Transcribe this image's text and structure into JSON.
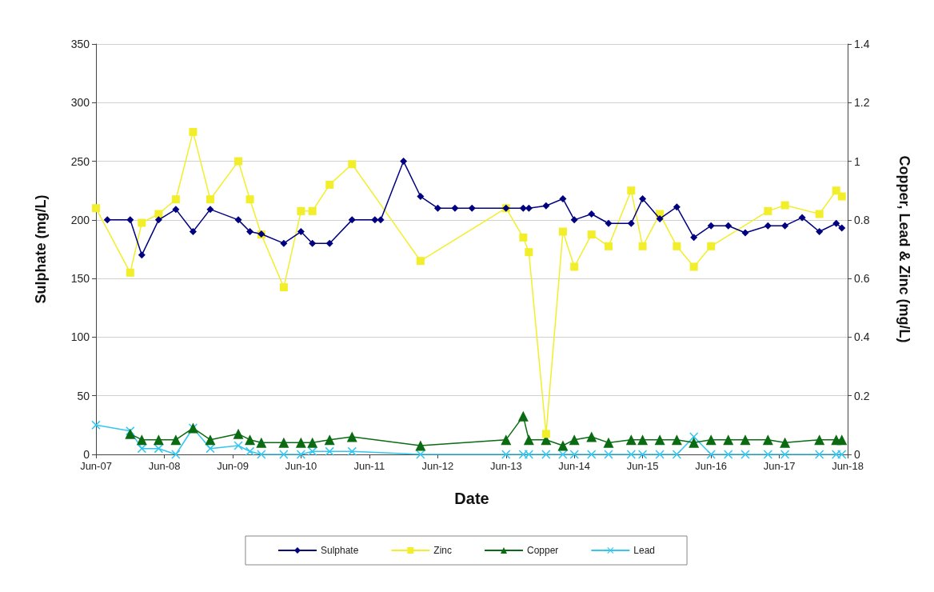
{
  "chart_data": {
    "type": "line",
    "xlabel": "Date",
    "ylabel": "Sulphate (mg/L)",
    "y2label": "Copper, Lead & Zinc (mg/L)",
    "xlim": [
      "2007-06",
      "2018-06"
    ],
    "xticks": [
      {
        "value": "2007-06",
        "label": "Jun-07"
      },
      {
        "value": "2008-06",
        "label": "Jun-08"
      },
      {
        "value": "2009-06",
        "label": "Jun-09"
      },
      {
        "value": "2010-06",
        "label": "Jun-10"
      },
      {
        "value": "2011-06",
        "label": "Jun-11"
      },
      {
        "value": "2012-06",
        "label": "Jun-12"
      },
      {
        "value": "2013-06",
        "label": "Jun-13"
      },
      {
        "value": "2014-06",
        "label": "Jun-14"
      },
      {
        "value": "2015-06",
        "label": "Jun-15"
      },
      {
        "value": "2016-06",
        "label": "Jun-16"
      },
      {
        "value": "2017-06",
        "label": "Jun-17"
      },
      {
        "value": "2018-06",
        "label": "Jun-18"
      }
    ],
    "ylim": [
      0,
      350
    ],
    "yticks": [
      0,
      50,
      100,
      150,
      200,
      250,
      300,
      350
    ],
    "y2lim": [
      0,
      1.4
    ],
    "y2ticks": [
      0,
      0.2,
      0.4,
      0.6,
      0.8,
      1,
      1.2,
      1.4
    ],
    "grid": "y",
    "legend": "bottom",
    "series": [
      {
        "name": "Sulphate",
        "color": "#000080",
        "marker": "diamond",
        "x": [
          "2007-08",
          "2007-12",
          "2008-02",
          "2008-05",
          "2008-08",
          "2008-11",
          "2009-02",
          "2009-07",
          "2009-09",
          "2009-11",
          "2010-03",
          "2010-06",
          "2010-08",
          "2010-11",
          "2011-03",
          "2011-07",
          "2011-08",
          "2011-12",
          "2012-03",
          "2012-06",
          "2012-09",
          "2012-12",
          "2013-06",
          "2013-09",
          "2013-10",
          "2014-01",
          "2014-04",
          "2014-06",
          "2014-09",
          "2014-12",
          "2015-04",
          "2015-06",
          "2015-09",
          "2015-12",
          "2016-03",
          "2016-06",
          "2016-09",
          "2016-12",
          "2017-04",
          "2017-07",
          "2017-10",
          "2018-01",
          "2018-04",
          "2018-05"
        ],
        "values": [
          200,
          200,
          170,
          200,
          209,
          190,
          209,
          200,
          190,
          188,
          180,
          190,
          180,
          180,
          200,
          200,
          200,
          250,
          220,
          210,
          210,
          210,
          210,
          210,
          210,
          212,
          218,
          200,
          205,
          197,
          197,
          218,
          201,
          211,
          185,
          195,
          195,
          189,
          195,
          195,
          202,
          190,
          197,
          193
        ]
      },
      {
        "name": "Zinc",
        "color": "#f2ef2a",
        "marker": "square",
        "axis": "y2",
        "x": [
          "2007-06",
          "2007-12",
          "2008-02",
          "2008-05",
          "2008-08",
          "2008-11",
          "2009-02",
          "2009-07",
          "2009-09",
          "2009-11",
          "2010-03",
          "2010-06",
          "2010-08",
          "2010-11",
          "2011-03",
          "2012-03",
          "2013-06",
          "2013-09",
          "2013-10",
          "2014-01",
          "2014-04",
          "2014-06",
          "2014-09",
          "2014-12",
          "2015-04",
          "2015-06",
          "2015-09",
          "2015-12",
          "2016-03",
          "2016-06",
          "2017-04",
          "2017-07",
          "2018-01",
          "2018-04",
          "2018-05"
        ],
        "values": [
          0.84,
          0.62,
          0.79,
          0.82,
          0.87,
          1.1,
          0.87,
          1.0,
          0.87,
          0.75,
          0.57,
          0.83,
          0.83,
          0.92,
          0.99,
          0.66,
          0.84,
          0.74,
          0.69,
          0.07,
          0.76,
          0.64,
          0.75,
          0.71,
          0.9,
          0.71,
          0.82,
          0.71,
          0.64,
          0.71,
          0.83,
          0.85,
          0.82,
          0.9,
          0.88
        ]
      },
      {
        "name": "Copper",
        "color": "#0a6b12",
        "marker": "triangle",
        "axis": "y2",
        "x": [
          "2007-12",
          "2008-02",
          "2008-05",
          "2008-08",
          "2008-11",
          "2009-02",
          "2009-07",
          "2009-09",
          "2009-11",
          "2010-03",
          "2010-06",
          "2010-08",
          "2010-11",
          "2011-03",
          "2012-03",
          "2013-06",
          "2013-09",
          "2013-10",
          "2014-01",
          "2014-04",
          "2014-06",
          "2014-09",
          "2014-12",
          "2015-04",
          "2015-06",
          "2015-09",
          "2015-12",
          "2016-03",
          "2016-06",
          "2016-09",
          "2016-12",
          "2017-04",
          "2017-07",
          "2018-01",
          "2018-04",
          "2018-05"
        ],
        "values": [
          0.07,
          0.05,
          0.05,
          0.05,
          0.09,
          0.05,
          0.07,
          0.05,
          0.04,
          0.04,
          0.04,
          0.04,
          0.05,
          0.06,
          0.03,
          0.05,
          0.13,
          0.05,
          0.05,
          0.03,
          0.05,
          0.06,
          0.04,
          0.05,
          0.05,
          0.05,
          0.05,
          0.04,
          0.05,
          0.05,
          0.05,
          0.05,
          0.04,
          0.05,
          0.05,
          0.05
        ]
      },
      {
        "name": "Lead",
        "color": "#33c6f0",
        "marker": "cross",
        "axis": "y2",
        "x": [
          "2007-06",
          "2007-12",
          "2008-02",
          "2008-05",
          "2008-08",
          "2008-11",
          "2009-02",
          "2009-07",
          "2009-09",
          "2009-11",
          "2010-03",
          "2010-06",
          "2010-08",
          "2010-11",
          "2011-03",
          "2012-03",
          "2013-06",
          "2013-09",
          "2013-10",
          "2014-01",
          "2014-04",
          "2014-06",
          "2014-09",
          "2014-12",
          "2015-04",
          "2015-06",
          "2015-09",
          "2015-12",
          "2016-03",
          "2016-06",
          "2016-09",
          "2016-12",
          "2017-04",
          "2017-07",
          "2018-01",
          "2018-04",
          "2018-05"
        ],
        "values": [
          0.1,
          0.08,
          0.02,
          0.02,
          0,
          0.09,
          0.02,
          0.03,
          0.01,
          0,
          0,
          0,
          0.01,
          0.01,
          0.01,
          0,
          0,
          0,
          0,
          0,
          0,
          0,
          0,
          0,
          0,
          0,
          0,
          0,
          0.06,
          0,
          0,
          0,
          0,
          0,
          0,
          0,
          0
        ]
      }
    ]
  }
}
